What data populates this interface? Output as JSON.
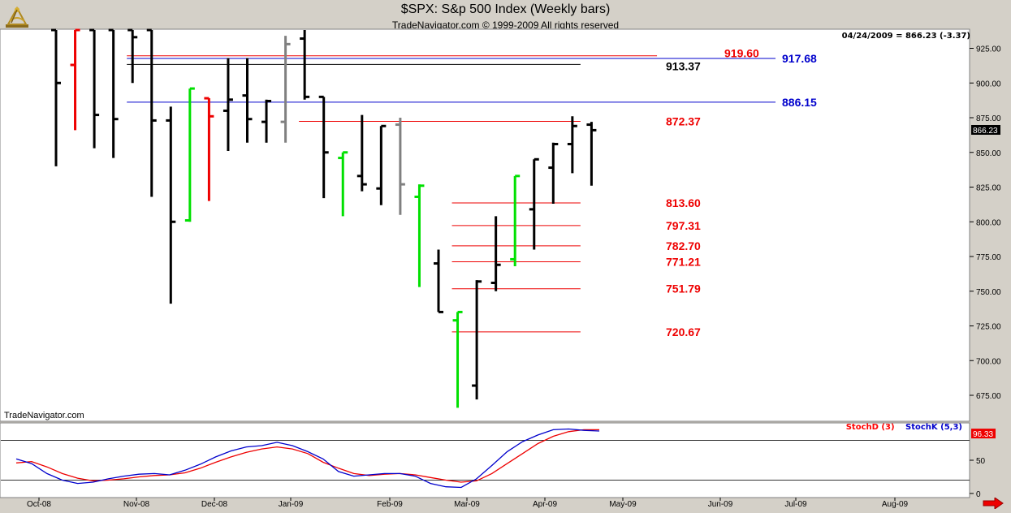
{
  "header": {
    "title": "$SPX:  S&p 500 Index  (Weekly bars)",
    "subtitle": "TradeNavigator.com © 1999-2009 All rights reserved"
  },
  "readout": "04/24/2009 = 866.23 (-3.37)",
  "watermark": "TradeNavigator.com",
  "stoch_legend": {
    "d_label": "StochD (3)",
    "k_label": "StochK (5,3)"
  },
  "colors": {
    "up_close": "#00e000",
    "down_red": "#ee0000",
    "gray": "#808080",
    "bar": "#000000",
    "level_red": "#ee0000",
    "level_blue": "#0000cc",
    "stoch_d": "#ff0000",
    "stoch_k": "#0000cc"
  },
  "icons": {
    "logo": "sextant-logo-icon",
    "scroll": "scroll-right-arrow-icon"
  },
  "chart_data": [
    {
      "type": "ohlc",
      "title": "$SPX:  S&p 500 Index  (Weekly bars)",
      "y_ticks": [
        675,
        700,
        725,
        750,
        775,
        800,
        825,
        850,
        875,
        900,
        925
      ],
      "ylim": [
        662,
        938
      ],
      "x_labels": [
        "Oct-08",
        "Nov-08",
        "Dec-08",
        "Jan-09",
        "Feb-09",
        "Mar-09",
        "Apr-09",
        "May-09",
        "Jun-09",
        "Jul-09",
        "Aug-09"
      ],
      "last_price_label": "866.23",
      "bars": [
        {
          "o": 945,
          "h": 945,
          "l": 840,
          "c": 900,
          "col": "black"
        },
        {
          "o": 913,
          "h": 945,
          "l": 866,
          "c": 945,
          "col": "red"
        },
        {
          "o": 945,
          "h": 945,
          "l": 853,
          "c": 877,
          "col": "black"
        },
        {
          "o": 945,
          "h": 945,
          "l": 846,
          "c": 874,
          "col": "black"
        },
        {
          "o": 945,
          "h": 945,
          "l": 900,
          "c": 933,
          "col": "black"
        },
        {
          "o": 945,
          "h": 945,
          "l": 818,
          "c": 873,
          "col": "black"
        },
        {
          "o": 873,
          "h": 883,
          "l": 741,
          "c": 800,
          "col": "black"
        },
        {
          "o": 801,
          "h": 896,
          "l": 800,
          "c": 896,
          "col": "green"
        },
        {
          "o": 889,
          "h": 889,
          "l": 815,
          "c": 876,
          "col": "red"
        },
        {
          "o": 880,
          "h": 918,
          "l": 851,
          "c": 888,
          "col": "black"
        },
        {
          "o": 891,
          "h": 918,
          "l": 857,
          "c": 874,
          "col": "black"
        },
        {
          "o": 872,
          "h": 888,
          "l": 857,
          "c": 887,
          "col": "black"
        },
        {
          "o": 872,
          "h": 934,
          "l": 857,
          "c": 928,
          "col": "gray"
        },
        {
          "o": 932,
          "h": 945,
          "l": 888,
          "c": 890,
          "col": "black"
        },
        {
          "o": 890,
          "h": 890,
          "l": 817,
          "c": 850,
          "col": "black"
        },
        {
          "o": 846,
          "h": 850,
          "l": 804,
          "c": 850,
          "col": "green"
        },
        {
          "o": 833,
          "h": 877,
          "l": 822,
          "c": 827,
          "col": "black"
        },
        {
          "o": 824,
          "h": 869,
          "l": 812,
          "c": 869,
          "col": "black"
        },
        {
          "o": 870,
          "h": 875,
          "l": 805,
          "c": 827,
          "col": "gray"
        },
        {
          "o": 818,
          "h": 827,
          "l": 753,
          "c": 826,
          "col": "green"
        },
        {
          "o": 770,
          "h": 780,
          "l": 735,
          "c": 735,
          "col": "black"
        },
        {
          "o": 729,
          "h": 735,
          "l": 666,
          "c": 735,
          "col": "green"
        },
        {
          "o": 682,
          "h": 758,
          "l": 672,
          "c": 757,
          "col": "black"
        },
        {
          "o": 756,
          "h": 804,
          "l": 750,
          "c": 769,
          "col": "black"
        },
        {
          "o": 773,
          "h": 833,
          "l": 768,
          "c": 833,
          "col": "green"
        },
        {
          "o": 809,
          "h": 845,
          "l": 780,
          "c": 845,
          "col": "black"
        },
        {
          "o": 839,
          "h": 857,
          "l": 813,
          "c": 856,
          "col": "black"
        },
        {
          "o": 856,
          "h": 876,
          "l": 835,
          "c": 869,
          "col": "black"
        },
        {
          "o": 870,
          "h": 872,
          "l": 826,
          "c": 866,
          "col": "black"
        }
      ],
      "levels": [
        {
          "value": 919.6,
          "label": "919.60",
          "color": "red",
          "from_bar": 4,
          "to_bar": 31
        },
        {
          "value": 917.68,
          "label": "917.68",
          "color": "blue",
          "from_bar": 4,
          "to_bar": 36
        },
        {
          "value": 913.37,
          "label": "913.37",
          "color": "black",
          "from_bar": 4,
          "to_bar": 27
        },
        {
          "value": 886.15,
          "label": "886.15",
          "color": "blue",
          "from_bar": 4,
          "to_bar": 36
        },
        {
          "value": 872.37,
          "label": "872.37",
          "color": "red",
          "from_bar": 13,
          "to_bar": 27
        },
        {
          "value": 813.6,
          "label": "813.60",
          "color": "red",
          "from_bar": 21,
          "to_bar": 27
        },
        {
          "value": 797.31,
          "label": "797.31",
          "color": "red",
          "from_bar": 21,
          "to_bar": 27
        },
        {
          "value": 782.7,
          "label": "782.70",
          "color": "red",
          "from_bar": 21,
          "to_bar": 27
        },
        {
          "value": 771.21,
          "label": "771.21",
          "color": "red",
          "from_bar": 21,
          "to_bar": 27
        },
        {
          "value": 751.79,
          "label": "751.79",
          "color": "red",
          "from_bar": 21,
          "to_bar": 27
        },
        {
          "value": 720.67,
          "label": "720.67",
          "color": "red",
          "from_bar": 21,
          "to_bar": 27
        }
      ]
    },
    {
      "type": "line",
      "title": "",
      "ylim": [
        -5,
        105
      ],
      "y_ticks": [
        0,
        50
      ],
      "hlines": [
        20,
        80
      ],
      "last_value_label": "96.33",
      "series": [
        {
          "name": "StochD (3)",
          "color": "red",
          "values": [
            46,
            48,
            40,
            30,
            23,
            19,
            20,
            22,
            25,
            27,
            28,
            31,
            38,
            47,
            55,
            62,
            67,
            70,
            67,
            60,
            47,
            38,
            30,
            27,
            29,
            30,
            28,
            24,
            20,
            17,
            19,
            30,
            45,
            60,
            75,
            86,
            93,
            96,
            96
          ]
        },
        {
          "name": "StochK (5,3)",
          "color": "blue",
          "values": [
            52,
            45,
            30,
            20,
            15,
            17,
            22,
            26,
            29,
            30,
            28,
            35,
            44,
            55,
            64,
            70,
            72,
            77,
            72,
            63,
            52,
            33,
            26,
            28,
            30,
            30,
            26,
            15,
            10,
            9,
            22,
            42,
            63,
            78,
            88,
            96,
            97,
            95,
            94
          ]
        }
      ]
    }
  ]
}
